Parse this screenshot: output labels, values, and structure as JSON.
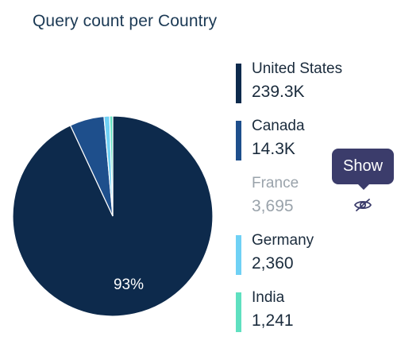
{
  "chart_data": {
    "type": "pie",
    "title": "Query count per Country",
    "slices": [
      {
        "label": "United States",
        "value": 239300,
        "display": "239.3K",
        "color": "#0d2a4c",
        "hidden": false
      },
      {
        "label": "Canada",
        "value": 14300,
        "display": "14.3K",
        "color": "#1e4f8c",
        "hidden": false
      },
      {
        "label": "France",
        "value": 3695,
        "display": "3,695",
        "color": "#9aa3ab",
        "hidden": true
      },
      {
        "label": "Germany",
        "value": 2360,
        "display": "2,360",
        "color": "#6fd1f5",
        "hidden": false
      },
      {
        "label": "India",
        "value": 1241,
        "display": "1,241",
        "color": "#5fe0c0",
        "hidden": false
      }
    ],
    "slice_labels": [
      "93%"
    ]
  },
  "tooltip": {
    "text": "Show"
  },
  "icons": {
    "toggle": "eye-crossed-icon"
  }
}
